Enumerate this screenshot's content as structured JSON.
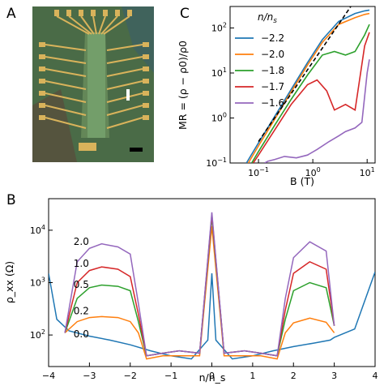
{
  "panels": {
    "A": {
      "letter": "A",
      "content": "optical micrograph of Hall-bar device"
    },
    "B": {
      "letter": "B"
    },
    "C": {
      "letter": "C"
    }
  },
  "chart_data": [
    {
      "panel": "C",
      "type": "line",
      "xlabel": "B (T)",
      "ylabel": "MR = (ρ − ρ0)/ρ0",
      "xscale": "log",
      "yscale": "log",
      "xlim": [
        0.03,
        14
      ],
      "ylim": [
        0.1,
        300
      ],
      "x_ticks": [
        "10^-1",
        "10^0",
        "10^1"
      ],
      "y_ticks": [
        "10^-1",
        "10^0",
        "10^1",
        "10^2"
      ],
      "legend_title": "n/n_s",
      "legend_position": "upper-left",
      "series": [
        {
          "name": "-2.2",
          "color": "#1f77b4",
          "x": [
            0.06,
            0.1,
            0.2,
            0.4,
            0.8,
            1.5,
            3,
            6,
            9,
            11
          ],
          "y": [
            0.1,
            0.28,
            1.1,
            4.3,
            17,
            55,
            140,
            210,
            240,
            250
          ]
        },
        {
          "name": "-2.0",
          "color": "#ff7f0e",
          "x": [
            0.065,
            0.1,
            0.2,
            0.4,
            0.8,
            1.5,
            3,
            6,
            9,
            11
          ],
          "y": [
            0.1,
            0.24,
            0.95,
            3.8,
            15,
            48,
            120,
            170,
            200,
            210
          ]
        },
        {
          "name": "-1.8",
          "color": "#2ca02c",
          "x": [
            0.075,
            0.1,
            0.2,
            0.4,
            0.8,
            1.5,
            2.5,
            4,
            6,
            9,
            11
          ],
          "y": [
            0.1,
            0.18,
            0.7,
            2.6,
            9,
            25,
            30,
            25,
            30,
            70,
            120
          ]
        },
        {
          "name": "-1.7",
          "color": "#d62728",
          "x": [
            0.08,
            0.1,
            0.2,
            0.4,
            0.8,
            1.2,
            1.8,
            2.5,
            4,
            6,
            9,
            11
          ],
          "y": [
            0.1,
            0.15,
            0.55,
            2,
            5.5,
            7,
            4,
            1.5,
            2,
            1.5,
            40,
            80
          ]
        },
        {
          "name": "-1.6",
          "color": "#9467bd",
          "x": [
            0.13,
            0.15,
            0.2,
            0.3,
            0.5,
            0.8,
            1.2,
            2,
            3,
            4,
            6,
            8,
            10,
            11
          ],
          "y": [
            0.1,
            0.11,
            0.12,
            0.14,
            0.13,
            0.15,
            0.2,
            0.3,
            0.4,
            0.5,
            0.6,
            0.8,
            10,
            20
          ]
        }
      ],
      "dashed_reference": {
        "x": [
          0.1,
          5
        ],
        "y": [
          0.3,
          300
        ]
      }
    },
    {
      "panel": "B",
      "type": "line",
      "xlabel": "n/n_s",
      "ylabel": "ρ_xx (Ω)",
      "yscale": "log",
      "xlim": [
        -4,
        4
      ],
      "ylim": [
        25,
        40000
      ],
      "x_ticks": [
        -4,
        -3,
        -2,
        -1,
        0,
        1,
        2,
        3,
        4
      ],
      "y_ticks": [
        "10^2",
        "10^3",
        "10^4"
      ],
      "curve_labels": [
        "2.0",
        "1.0",
        "0.5",
        "0.2",
        "0.0"
      ],
      "series": [
        {
          "name": "0.0",
          "color": "#1f77b4",
          "x": [
            -4,
            -3.8,
            -3.5,
            -3,
            -2.5,
            -2,
            -1.5,
            -1,
            -0.5,
            -0.1,
            0,
            0.1,
            0.5,
            1,
            1.5,
            2,
            2.5,
            2.9,
            3,
            3.5,
            4
          ],
          "y": [
            1500,
            200,
            120,
            95,
            80,
            65,
            50,
            40,
            35,
            80,
            1500,
            80,
            35,
            40,
            50,
            60,
            70,
            80,
            90,
            130,
            1600
          ]
        },
        {
          "name": "0.2",
          "color": "#ff7f0e",
          "x": [
            -3.6,
            -3.3,
            -3,
            -2.7,
            -2.3,
            -2,
            -1.8,
            -1.6,
            -1.2,
            -0.8,
            -0.3,
            0,
            0.3,
            0.8,
            1.2,
            1.6,
            1.8,
            2,
            2.4,
            2.8,
            3
          ],
          "y": [
            110,
            180,
            215,
            225,
            215,
            180,
            110,
            35,
            40,
            40,
            40,
            12000,
            40,
            40,
            40,
            35,
            110,
            170,
            210,
            175,
            110
          ]
        },
        {
          "name": "0.5",
          "color": "#2ca02c",
          "x": [
            -3.6,
            -3.3,
            -3,
            -2.7,
            -2.3,
            -2,
            -1.8,
            -1.6,
            -1.2,
            -0.8,
            -0.3,
            0,
            0.3,
            0.8,
            1.2,
            1.6,
            1.8,
            2,
            2.4,
            2.8,
            3
          ],
          "y": [
            110,
            500,
            800,
            900,
            850,
            700,
            180,
            40,
            45,
            50,
            45,
            18000,
            45,
            50,
            45,
            40,
            200,
            700,
            1000,
            800,
            150
          ]
        },
        {
          "name": "1.0",
          "color": "#d62728",
          "x": [
            -3.6,
            -3.3,
            -3,
            -2.7,
            -2.3,
            -2,
            -1.8,
            -1.6,
            -1.2,
            -0.8,
            -0.3,
            0,
            0.3,
            0.8,
            1.2,
            1.6,
            1.8,
            2,
            2.4,
            2.8,
            3
          ],
          "y": [
            110,
            1000,
            1700,
            2000,
            1800,
            1300,
            250,
            40,
            45,
            50,
            45,
            20000,
            45,
            50,
            45,
            40,
            300,
            1500,
            2500,
            1800,
            150
          ]
        },
        {
          "name": "2.0",
          "color": "#9467bd",
          "x": [
            -3.6,
            -3.3,
            -3,
            -2.7,
            -2.3,
            -2,
            -1.8,
            -1.6,
            -1.2,
            -0.8,
            -0.3,
            0,
            0.3,
            0.8,
            1.2,
            1.6,
            1.8,
            2,
            2.4,
            2.8,
            3
          ],
          "y": [
            110,
            2500,
            4500,
            5500,
            4800,
            3500,
            400,
            40,
            45,
            50,
            45,
            22000,
            45,
            50,
            45,
            40,
            500,
            3000,
            6000,
            4000,
            150
          ]
        }
      ]
    }
  ]
}
